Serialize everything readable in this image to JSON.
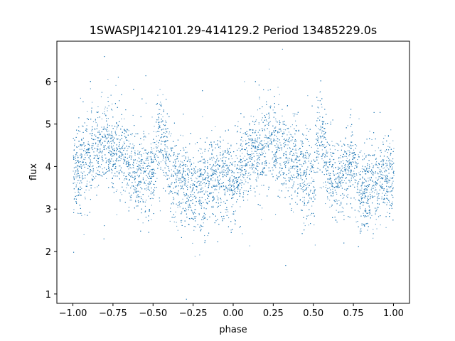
{
  "chart_data": {
    "type": "scatter",
    "title": "1SWASPJ142101.29-414129.2 Period 13485229.0s",
    "xlabel": "phase",
    "ylabel": "flux",
    "xlim": [
      -1.1,
      1.1
    ],
    "ylim": [
      0.78,
      6.95
    ],
    "xticks": [
      -1.0,
      -0.75,
      -0.5,
      -0.25,
      0.0,
      0.25,
      0.5,
      0.75,
      1.0
    ],
    "xtick_labels": [
      "−1.00",
      "−0.75",
      "−0.50",
      "−0.25",
      "0.00",
      "0.25",
      "0.50",
      "0.75",
      "1.00"
    ],
    "yticks": [
      1,
      2,
      3,
      4,
      5,
      6
    ],
    "ytick_labels": [
      "1",
      "2",
      "3",
      "4",
      "5",
      "6"
    ],
    "grid": false,
    "legend": "none",
    "marker_color": "#1f77b4",
    "series": [
      {
        "x": [
          -1.0,
          -0.95,
          -0.9,
          -0.85,
          -0.8,
          -0.75,
          -0.7,
          -0.65,
          -0.6,
          -0.55,
          -0.5,
          -0.47,
          -0.45,
          -0.4,
          -0.35,
          -0.3,
          -0.25,
          -0.2,
          -0.15,
          -0.1,
          -0.05,
          0.0,
          0.05,
          0.1,
          0.15,
          0.2,
          0.25,
          0.3,
          0.35,
          0.4,
          0.45,
          0.5,
          0.53,
          0.55,
          0.6,
          0.65,
          0.7,
          0.75,
          0.8,
          0.85,
          0.9,
          0.95,
          1.0
        ],
        "y": [
          3.9,
          4.0,
          4.2,
          4.4,
          4.6,
          4.5,
          4.3,
          4.1,
          3.9,
          3.9,
          3.8,
          4.9,
          4.7,
          3.9,
          3.8,
          3.6,
          3.5,
          3.5,
          3.6,
          3.7,
          3.8,
          3.7,
          3.9,
          4.2,
          4.4,
          4.5,
          4.6,
          4.4,
          4.2,
          4.0,
          3.8,
          3.7,
          4.9,
          4.8,
          3.8,
          3.6,
          4.0,
          3.9,
          3.5,
          3.4,
          3.6,
          3.7,
          3.8
        ],
        "spread": 0.5
      }
    ]
  }
}
